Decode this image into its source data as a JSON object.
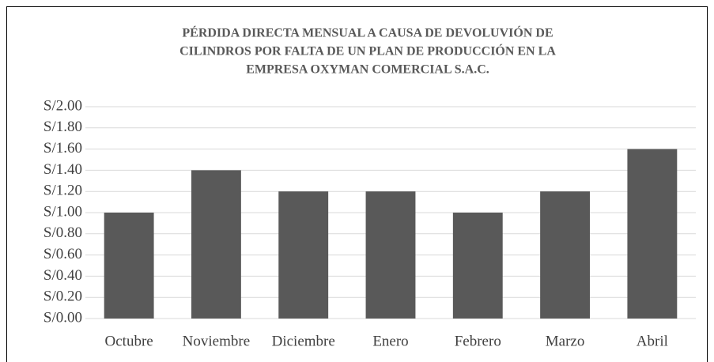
{
  "chart_data": {
    "type": "bar",
    "title": [
      "PÉRDIDA DIRECTA MENSUAL A CAUSA DE DEVOLUVIÓN DE",
      "CILINDROS POR FALTA DE UN PLAN DE PRODUCCIÓN EN LA",
      "EMPRESA OXYMAN COMERCIAL S.A.C."
    ],
    "categories": [
      "Octubre",
      "Noviembre",
      "Diciembre",
      "Enero",
      "Febrero",
      "Marzo",
      "Abril"
    ],
    "values": [
      1.0,
      1.4,
      1.2,
      1.2,
      1.0,
      1.2,
      1.6
    ],
    "color": "#595959",
    "ylim": [
      0,
      2
    ],
    "yticks": [
      {
        "value": 0,
        "label": "S/0.00"
      },
      {
        "value": 0.2,
        "label": "S/0.20"
      },
      {
        "value": 0.4,
        "label": "S/0.40"
      },
      {
        "value": 0.6,
        "label": "S/0.60"
      },
      {
        "value": 0.8,
        "label": "S/0.80"
      },
      {
        "value": 1.0,
        "label": "S/1.00"
      },
      {
        "value": 1.2,
        "label": "S/1.20"
      },
      {
        "value": 1.4,
        "label": "S/1.40"
      },
      {
        "value": 1.6,
        "label": "S/1.60"
      },
      {
        "value": 1.8,
        "label": "S/1.80"
      },
      {
        "value": 2.0,
        "label": "S/2.00"
      }
    ],
    "grid": true
  }
}
